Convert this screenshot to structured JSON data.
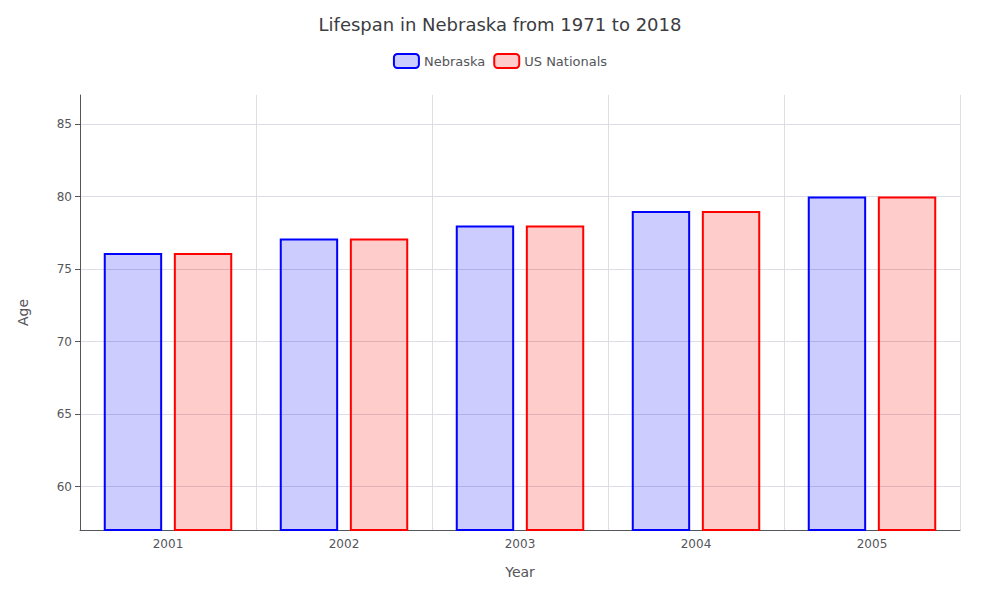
{
  "chart_data": {
    "type": "bar",
    "title": "Lifespan in Nebraska from 1971 to 2018",
    "x_label": "Year",
    "y_label": "Age",
    "categories": [
      "2001",
      "2002",
      "2003",
      "2004",
      "2005"
    ],
    "series": [
      {
        "name": "Nebraska",
        "color": "#0000ff",
        "values": [
          76.1,
          77.1,
          78.0,
          79.0,
          80.0
        ]
      },
      {
        "name": "US Nationals",
        "color": "#ff0000",
        "values": [
          76.1,
          77.1,
          78.0,
          79.0,
          80.0
        ]
      }
    ],
    "ylim": [
      57,
      87
    ],
    "yticks": [
      60,
      65,
      70,
      75,
      80,
      85
    ],
    "grid": true,
    "legend": "top"
  }
}
